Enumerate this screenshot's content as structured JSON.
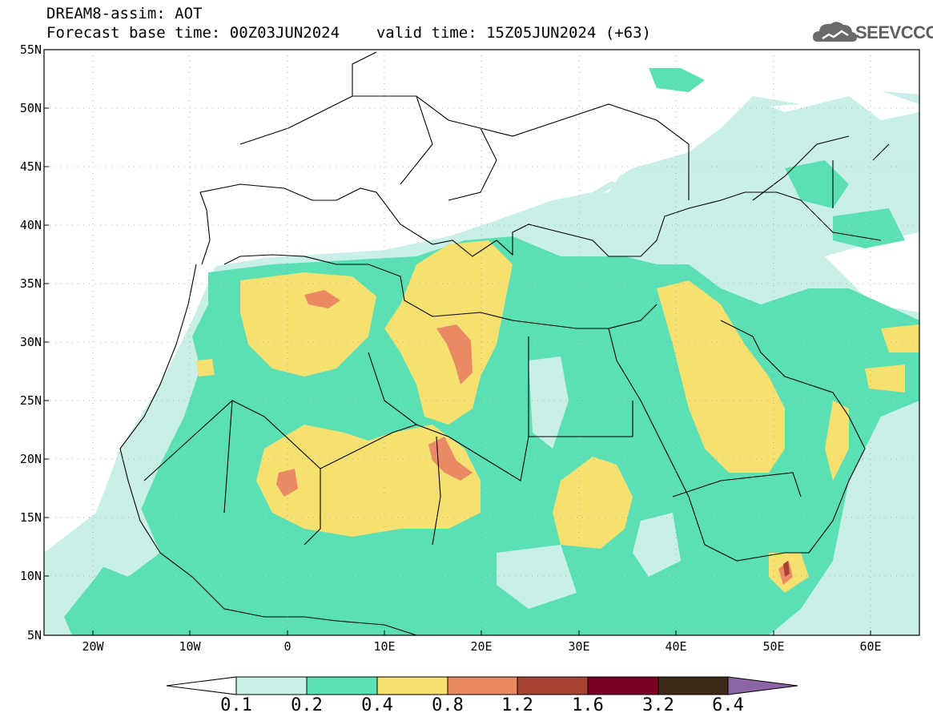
{
  "header": {
    "title": "DREAM8-assim: AOT",
    "base_label": "Forecast base time: 00Z03JUN2024",
    "valid_label": "valid time: 15Z05JUN2024 (+63)",
    "logo_text": "SEEVCCC"
  },
  "axes": {
    "lat_labels": [
      "55N",
      "50N",
      "45N",
      "40N",
      "35N",
      "30N",
      "25N",
      "20N",
      "15N",
      "10N",
      "5N"
    ],
    "lon_labels": [
      "20W",
      "10W",
      "0",
      "10E",
      "20E",
      "30E",
      "40E",
      "50E",
      "60E"
    ]
  },
  "colorbar": {
    "labels": [
      "0.1",
      "0.2",
      "0.4",
      "0.8",
      "1.2",
      "1.6",
      "3.2",
      "6.4"
    ],
    "colors": [
      "#ffffff",
      "#c8f0e8",
      "#5ae0b4",
      "#f5e070",
      "#e98a64",
      "#a84234",
      "#7a0026",
      "#3d2a14",
      "#8b64a8"
    ]
  }
}
